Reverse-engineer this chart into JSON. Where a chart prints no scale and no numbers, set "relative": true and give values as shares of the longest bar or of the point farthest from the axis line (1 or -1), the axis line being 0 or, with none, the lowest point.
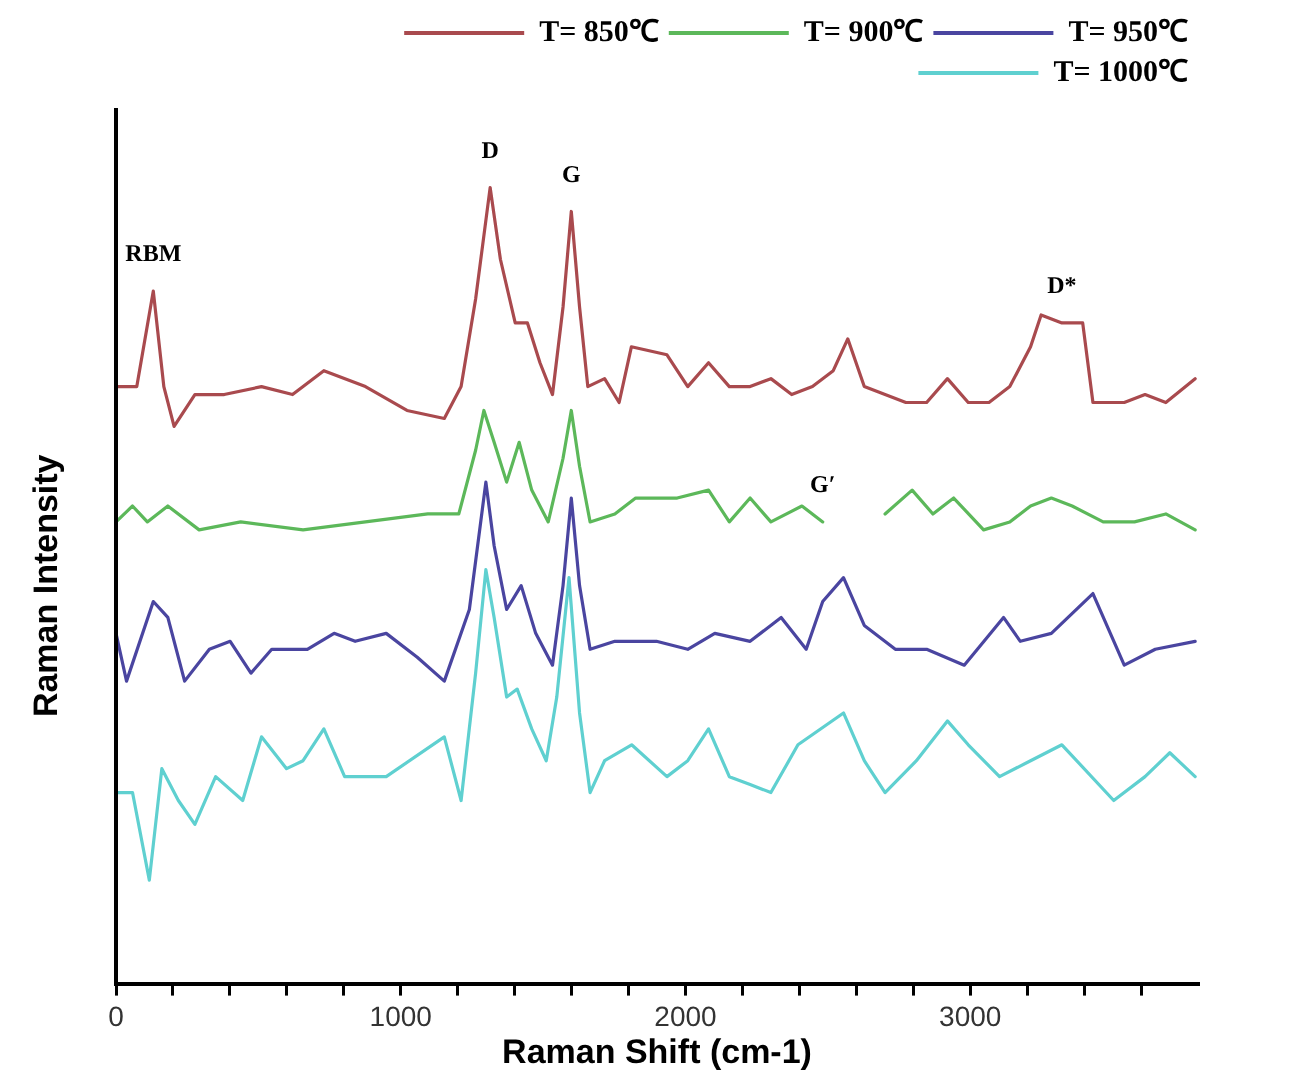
{
  "chart_data": {
    "type": "line",
    "relative": true,
    "xlabel": "Raman Shift (cm-1)",
    "ylabel": "Raman Intensity",
    "xlim": [
      0,
      3800
    ],
    "xticks": [
      0,
      {
        "value": 200,
        "label": null
      },
      {
        "value": 400,
        "label": null
      },
      {
        "value": 600,
        "label": null
      },
      {
        "value": 800,
        "label": null
      },
      1000,
      {
        "value": 1200,
        "label": null
      },
      {
        "value": 1400,
        "label": null
      },
      {
        "value": 1600,
        "label": null
      },
      {
        "value": 1800,
        "label": null
      },
      2000,
      {
        "value": 2200,
        "label": null
      },
      {
        "value": 2400,
        "label": null
      },
      {
        "value": 2600,
        "label": null
      },
      {
        "value": 2800,
        "label": null
      },
      3000,
      {
        "value": 3200,
        "label": null
      },
      {
        "value": 3400,
        "label": null
      },
      {
        "value": 3600,
        "label": null
      }
    ],
    "legend": "top right",
    "grid": false,
    "marker": "none",
    "line_style": "solid",
    "annotations": [
      {
        "text": "RBM",
        "x": 131,
        "y": 0.87
      },
      {
        "text": "D",
        "x": 1314,
        "y": 1
      },
      {
        "text": "G",
        "x": 1599,
        "y": 0.97
      },
      {
        "text": "G′",
        "x": 2482,
        "y": 0.58
      },
      {
        "text": "D*",
        "x": 3322,
        "y": 0.83
      }
    ],
    "series": [
      {
        "name": "T= 850℃",
        "color": "#a94a4e",
        "x": [
          0,
          73,
          131,
          168,
          204,
          277,
          380,
          511,
          620,
          730,
          876,
          1022,
          1153,
          1212,
          1263,
          1314,
          1350,
          1402,
          1445,
          1489,
          1533,
          1570,
          1599,
          1628,
          1657,
          1716,
          1767,
          1810,
          1935,
          2008,
          2081,
          2154,
          2227,
          2300,
          2373,
          2446,
          2519,
          2570,
          2628,
          2701,
          2774,
          2847,
          2920,
          2993,
          3066,
          3139,
          3212,
          3249,
          3322,
          3395,
          3431,
          3541,
          3614,
          3687,
          3790
        ],
        "values": [
          0.75,
          0.75,
          0.87,
          0.75,
          0.7,
          0.74,
          0.74,
          0.75,
          0.74,
          0.77,
          0.75,
          0.72,
          0.71,
          0.75,
          0.86,
          1,
          0.91,
          0.83,
          0.83,
          0.78,
          0.74,
          0.85,
          0.97,
          0.85,
          0.75,
          0.76,
          0.73,
          0.8,
          0.79,
          0.75,
          0.78,
          0.75,
          0.75,
          0.76,
          0.74,
          0.75,
          0.77,
          0.81,
          0.75,
          0.74,
          0.73,
          0.73,
          0.76,
          0.73,
          0.73,
          0.75,
          0.8,
          0.84,
          0.83,
          0.83,
          0.73,
          0.73,
          0.74,
          0.73,
          0.76
        ]
      },
      {
        "name": "T= 900℃",
        "color": "#5cb85a",
        "x": [
          0,
          58,
          110,
          182,
          292,
          438,
          657,
          876,
          1095,
          1204,
          1263,
          1292,
          1328,
          1372,
          1416,
          1460,
          1518,
          1570,
          1599,
          1628,
          1665,
          1752,
          1825,
          1971,
          2081,
          2154,
          2227,
          2300,
          2409,
          2482,
          2555,
          2701,
          2796,
          2869,
          2942,
          3047,
          3139,
          3212,
          3285,
          3358,
          3467,
          3577,
          3687,
          3790
        ],
        "values": [
          0.58,
          0.6,
          0.58,
          0.6,
          0.57,
          0.58,
          0.57,
          0.58,
          0.59,
          0.59,
          0.67,
          0.72,
          0.68,
          0.63,
          0.68,
          0.62,
          0.58,
          0.66,
          0.72,
          0.65,
          0.58,
          0.59,
          0.61,
          0.61,
          0.62,
          0.58,
          0.61,
          0.58,
          0.6,
          0.58,
          null,
          0.59,
          0.62,
          0.59,
          0.61,
          0.57,
          0.58,
          0.6,
          0.61,
          0.6,
          0.58,
          0.58,
          0.59,
          0.57
        ]
      },
      {
        "name": "T= 950℃",
        "color": "#4a45a0",
        "x": [
          0,
          37,
          131,
          182,
          241,
          328,
          401,
          474,
          547,
          672,
          766,
          840,
          949,
          1058,
          1153,
          1241,
          1299,
          1328,
          1372,
          1423,
          1474,
          1533,
          1570,
          1599,
          1628,
          1665,
          1752,
          1898,
          2008,
          2103,
          2227,
          2336,
          2424,
          2482,
          2555,
          2628,
          2737,
          2847,
          2979,
          3117,
          3176,
          3285,
          3431,
          3541,
          3650,
          3790
        ],
        "values": [
          0.44,
          0.38,
          0.48,
          0.46,
          0.38,
          0.42,
          0.43,
          0.39,
          0.42,
          0.42,
          0.44,
          0.43,
          0.44,
          0.41,
          0.38,
          0.47,
          0.63,
          0.55,
          0.47,
          0.5,
          0.44,
          0.4,
          0.5,
          0.61,
          0.5,
          0.42,
          0.43,
          0.43,
          0.42,
          0.44,
          0.43,
          0.46,
          0.42,
          0.48,
          0.51,
          0.45,
          0.42,
          0.42,
          0.4,
          0.46,
          0.43,
          0.44,
          0.49,
          0.4,
          0.42,
          0.43
        ]
      },
      {
        "name": "T= 1000℃",
        "color": "#5fd0d0",
        "x": [
          0,
          58,
          117,
          161,
          219,
          277,
          350,
          445,
          511,
          599,
          657,
          730,
          803,
          949,
          1153,
          1212,
          1263,
          1299,
          1328,
          1372,
          1409,
          1460,
          1511,
          1548,
          1591,
          1628,
          1665,
          1716,
          1811,
          1935,
          2008,
          2081,
          2154,
          2227,
          2300,
          2395,
          2555,
          2628,
          2701,
          2811,
          2920,
          2993,
          3103,
          3212,
          3322,
          3504,
          3614,
          3701,
          3790
        ],
        "values": [
          0.24,
          0.24,
          0.13,
          0.27,
          0.23,
          0.2,
          0.26,
          0.23,
          0.31,
          0.27,
          0.28,
          0.32,
          0.26,
          0.26,
          0.31,
          0.23,
          0.39,
          0.52,
          0.46,
          0.36,
          0.37,
          0.32,
          0.28,
          0.36,
          0.51,
          0.34,
          0.24,
          0.28,
          0.3,
          0.26,
          0.28,
          0.32,
          0.26,
          0.25,
          0.24,
          0.3,
          0.34,
          0.28,
          0.24,
          0.28,
          0.33,
          0.3,
          0.26,
          0.28,
          0.3,
          0.23,
          0.26,
          0.29,
          0.26
        ]
      }
    ]
  }
}
